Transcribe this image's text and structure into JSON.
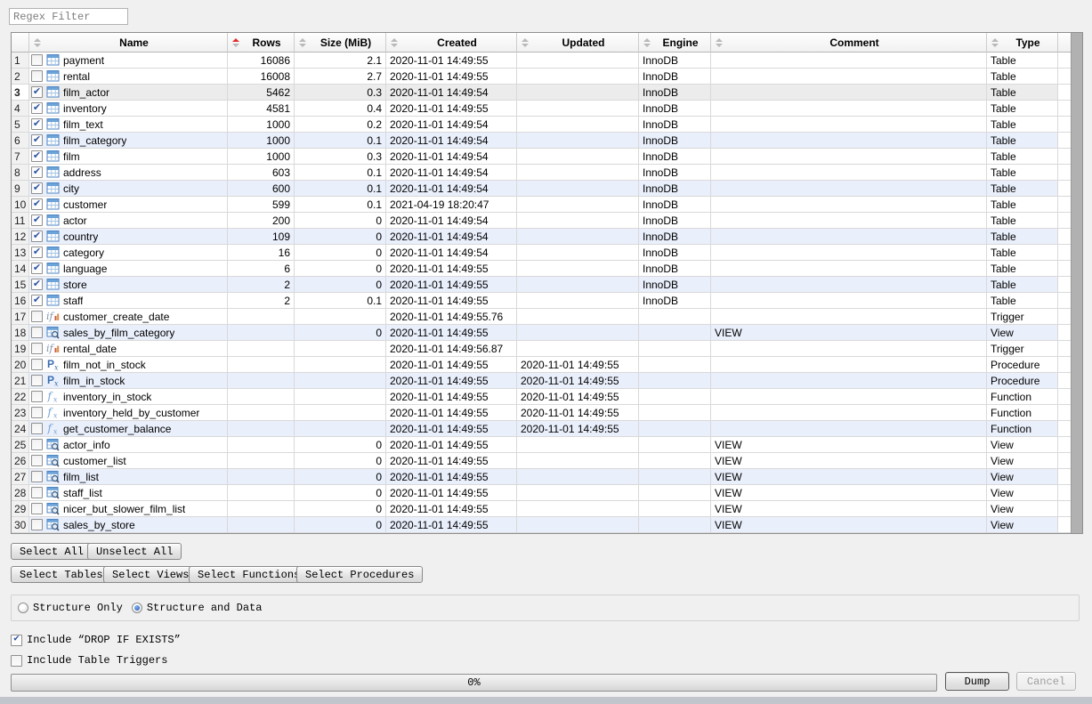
{
  "filter": {
    "placeholder": "Regex Filter"
  },
  "colors": {
    "accent_sort_arrow": "#e02f2f",
    "check_mark_blue": "#2d53a5",
    "radio_dot_blue": "#1c4fa8",
    "row_alt_blue": "#e9effb",
    "row_selected_gray": "#ececec",
    "icon_blue": "#5f93c9",
    "scrollbar_gray": "#b1b1b1"
  },
  "table": {
    "columns": [
      {
        "key": "name",
        "label": "Name",
        "sorted": false
      },
      {
        "key": "rows",
        "label": "Rows",
        "sorted": true
      },
      {
        "key": "size",
        "label": "Size (MiB)",
        "sorted": false
      },
      {
        "key": "created",
        "label": "Created",
        "sorted": false
      },
      {
        "key": "updated",
        "label": "Updated",
        "sorted": false
      },
      {
        "key": "engine",
        "label": "Engine",
        "sorted": false
      },
      {
        "key": "comment",
        "label": "Comment",
        "sorted": false
      },
      {
        "key": "type",
        "label": "Type",
        "sorted": false
      }
    ],
    "rows": [
      {
        "num": "1",
        "checked": false,
        "selected": false,
        "icon": "table-icon",
        "name": "payment",
        "rows": "16086",
        "size": "2.1",
        "created": "2020-11-01 14:49:55",
        "updated": "",
        "engine": "InnoDB",
        "comment": "",
        "type": "Table"
      },
      {
        "num": "2",
        "checked": false,
        "selected": false,
        "icon": "table-icon",
        "name": "rental",
        "rows": "16008",
        "size": "2.7",
        "created": "2020-11-01 14:49:55",
        "updated": "",
        "engine": "InnoDB",
        "comment": "",
        "type": "Table"
      },
      {
        "num": "3",
        "checked": true,
        "selected": true,
        "icon": "table-icon",
        "name": "film_actor",
        "rows": "5462",
        "size": "0.3",
        "created": "2020-11-01 14:49:54",
        "updated": "",
        "engine": "InnoDB",
        "comment": "",
        "type": "Table"
      },
      {
        "num": "4",
        "checked": true,
        "selected": false,
        "icon": "table-icon",
        "name": "inventory",
        "rows": "4581",
        "size": "0.4",
        "created": "2020-11-01 14:49:55",
        "updated": "",
        "engine": "InnoDB",
        "comment": "",
        "type": "Table"
      },
      {
        "num": "5",
        "checked": true,
        "selected": false,
        "icon": "table-icon",
        "name": "film_text",
        "rows": "1000",
        "size": "0.2",
        "created": "2020-11-01 14:49:54",
        "updated": "",
        "engine": "InnoDB",
        "comment": "",
        "type": "Table"
      },
      {
        "num": "6",
        "checked": true,
        "selected": false,
        "icon": "table-icon",
        "name": "film_category",
        "rows": "1000",
        "size": "0.1",
        "created": "2020-11-01 14:49:54",
        "updated": "",
        "engine": "InnoDB",
        "comment": "",
        "type": "Table"
      },
      {
        "num": "7",
        "checked": true,
        "selected": false,
        "icon": "table-icon",
        "name": "film",
        "rows": "1000",
        "size": "0.3",
        "created": "2020-11-01 14:49:54",
        "updated": "",
        "engine": "InnoDB",
        "comment": "",
        "type": "Table"
      },
      {
        "num": "8",
        "checked": true,
        "selected": false,
        "icon": "table-icon",
        "name": "address",
        "rows": "603",
        "size": "0.1",
        "created": "2020-11-01 14:49:54",
        "updated": "",
        "engine": "InnoDB",
        "comment": "",
        "type": "Table"
      },
      {
        "num": "9",
        "checked": true,
        "selected": false,
        "icon": "table-icon",
        "name": "city",
        "rows": "600",
        "size": "0.1",
        "created": "2020-11-01 14:49:54",
        "updated": "",
        "engine": "InnoDB",
        "comment": "",
        "type": "Table"
      },
      {
        "num": "10",
        "checked": true,
        "selected": false,
        "icon": "table-icon",
        "name": "customer",
        "rows": "599",
        "size": "0.1",
        "created": "2021-04-19 18:20:47",
        "updated": "",
        "engine": "InnoDB",
        "comment": "",
        "type": "Table"
      },
      {
        "num": "11",
        "checked": true,
        "selected": false,
        "icon": "table-icon",
        "name": "actor",
        "rows": "200",
        "size": "0",
        "created": "2020-11-01 14:49:54",
        "updated": "",
        "engine": "InnoDB",
        "comment": "",
        "type": "Table"
      },
      {
        "num": "12",
        "checked": true,
        "selected": false,
        "icon": "table-icon",
        "name": "country",
        "rows": "109",
        "size": "0",
        "created": "2020-11-01 14:49:54",
        "updated": "",
        "engine": "InnoDB",
        "comment": "",
        "type": "Table"
      },
      {
        "num": "13",
        "checked": true,
        "selected": false,
        "icon": "table-icon",
        "name": "category",
        "rows": "16",
        "size": "0",
        "created": "2020-11-01 14:49:54",
        "updated": "",
        "engine": "InnoDB",
        "comment": "",
        "type": "Table"
      },
      {
        "num": "14",
        "checked": true,
        "selected": false,
        "icon": "table-icon",
        "name": "language",
        "rows": "6",
        "size": "0",
        "created": "2020-11-01 14:49:55",
        "updated": "",
        "engine": "InnoDB",
        "comment": "",
        "type": "Table"
      },
      {
        "num": "15",
        "checked": true,
        "selected": false,
        "icon": "table-icon",
        "name": "store",
        "rows": "2",
        "size": "0",
        "created": "2020-11-01 14:49:55",
        "updated": "",
        "engine": "InnoDB",
        "comment": "",
        "type": "Table"
      },
      {
        "num": "16",
        "checked": true,
        "selected": false,
        "icon": "table-icon",
        "name": "staff",
        "rows": "2",
        "size": "0.1",
        "created": "2020-11-01 14:49:55",
        "updated": "",
        "engine": "InnoDB",
        "comment": "",
        "type": "Table"
      },
      {
        "num": "17",
        "checked": false,
        "selected": false,
        "icon": "trigger-icon",
        "name": "customer_create_date",
        "rows": "",
        "size": "",
        "created": "2020-11-01 14:49:55.76",
        "updated": "",
        "engine": "",
        "comment": "",
        "type": "Trigger"
      },
      {
        "num": "18",
        "checked": false,
        "selected": false,
        "icon": "view-icon",
        "name": "sales_by_film_category",
        "rows": "",
        "size": "0",
        "created": "2020-11-01 14:49:55",
        "updated": "",
        "engine": "",
        "comment": "VIEW",
        "type": "View"
      },
      {
        "num": "19",
        "checked": false,
        "selected": false,
        "icon": "trigger-icon",
        "name": "rental_date",
        "rows": "",
        "size": "",
        "created": "2020-11-01 14:49:56.87",
        "updated": "",
        "engine": "",
        "comment": "",
        "type": "Trigger"
      },
      {
        "num": "20",
        "checked": false,
        "selected": false,
        "icon": "procedure-icon",
        "name": "film_not_in_stock",
        "rows": "",
        "size": "",
        "created": "2020-11-01 14:49:55",
        "updated": "2020-11-01 14:49:55",
        "engine": "",
        "comment": "",
        "type": "Procedure"
      },
      {
        "num": "21",
        "checked": false,
        "selected": false,
        "icon": "procedure-icon",
        "name": "film_in_stock",
        "rows": "",
        "size": "",
        "created": "2020-11-01 14:49:55",
        "updated": "2020-11-01 14:49:55",
        "engine": "",
        "comment": "",
        "type": "Procedure"
      },
      {
        "num": "22",
        "checked": false,
        "selected": false,
        "icon": "function-icon",
        "name": "inventory_in_stock",
        "rows": "",
        "size": "",
        "created": "2020-11-01 14:49:55",
        "updated": "2020-11-01 14:49:55",
        "engine": "",
        "comment": "",
        "type": "Function"
      },
      {
        "num": "23",
        "checked": false,
        "selected": false,
        "icon": "function-icon",
        "name": "inventory_held_by_customer",
        "rows": "",
        "size": "",
        "created": "2020-11-01 14:49:55",
        "updated": "2020-11-01 14:49:55",
        "engine": "",
        "comment": "",
        "type": "Function"
      },
      {
        "num": "24",
        "checked": false,
        "selected": false,
        "icon": "function-icon",
        "name": "get_customer_balance",
        "rows": "",
        "size": "",
        "created": "2020-11-01 14:49:55",
        "updated": "2020-11-01 14:49:55",
        "engine": "",
        "comment": "",
        "type": "Function"
      },
      {
        "num": "25",
        "checked": false,
        "selected": false,
        "icon": "view-icon",
        "name": "actor_info",
        "rows": "",
        "size": "0",
        "created": "2020-11-01 14:49:55",
        "updated": "",
        "engine": "",
        "comment": "VIEW",
        "type": "View"
      },
      {
        "num": "26",
        "checked": false,
        "selected": false,
        "icon": "view-icon",
        "name": "customer_list",
        "rows": "",
        "size": "0",
        "created": "2020-11-01 14:49:55",
        "updated": "",
        "engine": "",
        "comment": "VIEW",
        "type": "View"
      },
      {
        "num": "27",
        "checked": false,
        "selected": false,
        "icon": "view-icon",
        "name": "film_list",
        "rows": "",
        "size": "0",
        "created": "2020-11-01 14:49:55",
        "updated": "",
        "engine": "",
        "comment": "VIEW",
        "type": "View"
      },
      {
        "num": "28",
        "checked": false,
        "selected": false,
        "icon": "view-icon",
        "name": "staff_list",
        "rows": "",
        "size": "0",
        "created": "2020-11-01 14:49:55",
        "updated": "",
        "engine": "",
        "comment": "VIEW",
        "type": "View"
      },
      {
        "num": "29",
        "checked": false,
        "selected": false,
        "icon": "view-icon",
        "name": "nicer_but_slower_film_list",
        "rows": "",
        "size": "0",
        "created": "2020-11-01 14:49:55",
        "updated": "",
        "engine": "",
        "comment": "VIEW",
        "type": "View"
      },
      {
        "num": "30",
        "checked": false,
        "selected": false,
        "icon": "view-icon",
        "name": "sales_by_store",
        "rows": "",
        "size": "0",
        "created": "2020-11-01 14:49:55",
        "updated": "",
        "engine": "",
        "comment": "VIEW",
        "type": "View"
      }
    ]
  },
  "selection_buttons": {
    "select_all": "Select All",
    "unselect_all": "Unselect All"
  },
  "type_buttons": {
    "tables": "Select Tables",
    "views": "Select Views",
    "functions": "Select Functions",
    "procedures": "Select Procedures"
  },
  "options": {
    "radios": [
      {
        "label": "Structure Only",
        "selected": false
      },
      {
        "label": "Structure and Data",
        "selected": true
      }
    ],
    "checkboxes": [
      {
        "label": "Include “DROP IF EXISTS”",
        "checked": true
      },
      {
        "label": "Include Table Triggers",
        "checked": false
      }
    ]
  },
  "progress": {
    "value": "0%"
  },
  "actions": {
    "dump": "Dump",
    "cancel": "Cancel",
    "cancel_enabled": false
  }
}
